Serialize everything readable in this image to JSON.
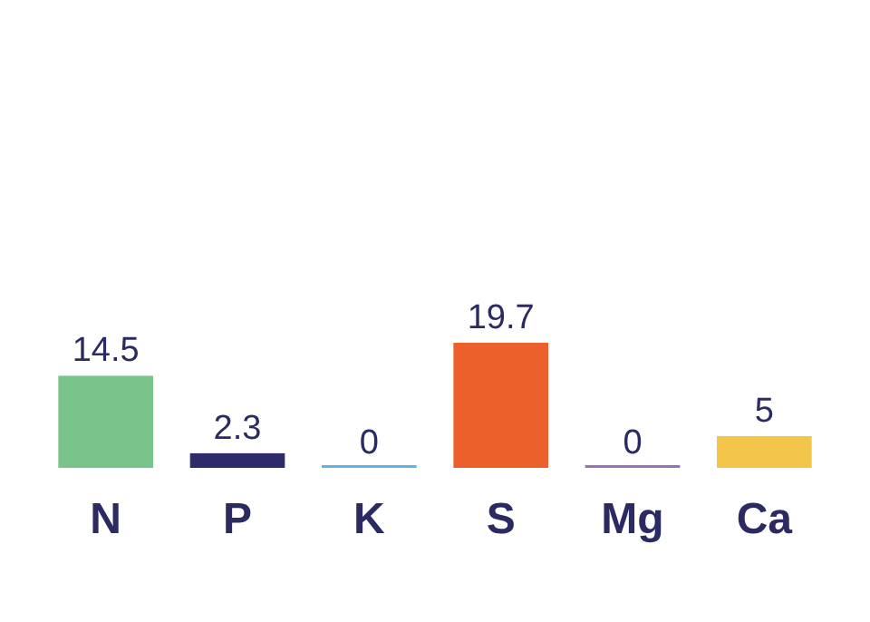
{
  "chart_data": {
    "type": "bar",
    "categories": [
      "N",
      "P",
      "K",
      "S",
      "Mg",
      "Ca"
    ],
    "values": [
      14.5,
      2.3,
      0,
      19.7,
      0,
      5
    ],
    "colors": [
      "#79c48a",
      "#2e2b6b",
      "#5db5e3",
      "#ec602b",
      "#9a70b8",
      "#f3c54a"
    ],
    "data_labels": true
  }
}
